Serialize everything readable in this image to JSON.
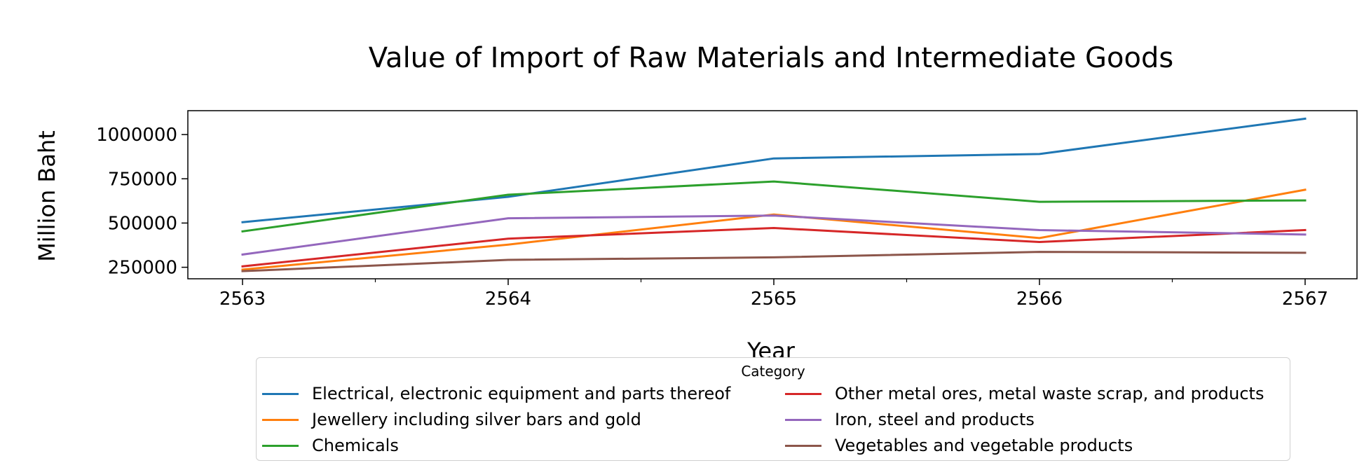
{
  "chart_data": {
    "type": "line",
    "title": "Value of Import of Raw Materials and Intermediate Goods",
    "xlabel": "Year",
    "ylabel": "Million Baht",
    "x": [
      "2563",
      "2564",
      "2565",
      "2566",
      "2567"
    ],
    "yticks": [
      "250000",
      "500000",
      "750000",
      "1000000"
    ],
    "ylim": [
      185000,
      1135000
    ],
    "grid": false,
    "legend": {
      "title": "Category",
      "placement": "bottom-center",
      "columns": 2
    },
    "series": [
      {
        "name": "Electrical, electronic equipment and parts thereof",
        "color": "#1f77b4",
        "values": [
          505000,
          648000,
          865000,
          890000,
          1090000
        ]
      },
      {
        "name": "Jewellery including silver bars and gold",
        "color": "#ff7f0e",
        "values": [
          237000,
          378000,
          548000,
          415000,
          688000
        ]
      },
      {
        "name": "Chemicals",
        "color": "#2ca02c",
        "values": [
          453000,
          660000,
          735000,
          620000,
          628000
        ]
      },
      {
        "name": "Other metal ores, metal waste scrap, and products",
        "color": "#d62728",
        "values": [
          255000,
          412000,
          472000,
          393000,
          460000
        ]
      },
      {
        "name": "Iron, steel and products",
        "color": "#9467bd",
        "values": [
          322000,
          527000,
          542000,
          460000,
          435000
        ]
      },
      {
        "name": "Vegetables and vegetable products",
        "color": "#8c564b",
        "values": [
          228000,
          292000,
          306000,
          337000,
          332000
        ]
      }
    ]
  }
}
